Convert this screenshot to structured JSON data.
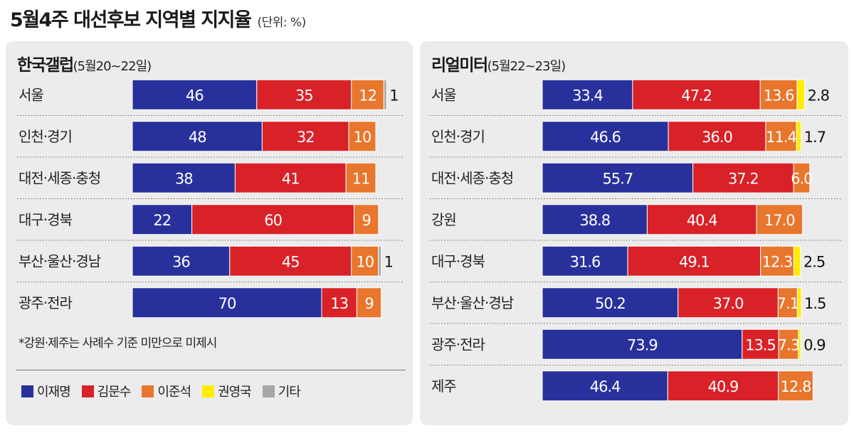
{
  "title": "5월4주 대선후보 지역별 지지율",
  "unit": "(단위: %)",
  "colors": {
    "이재명": "#28319b",
    "김문수": "#d92128",
    "이준석": "#e8762d",
    "권영국": "#ffee00",
    "기타": "#a7a7a7"
  },
  "footnote": "*강원·제주는 사례수 기준 미만으로 미제시",
  "legend": [
    {
      "name": "이재명",
      "color": "#28319b"
    },
    {
      "name": "김문수",
      "color": "#d92128"
    },
    {
      "name": "이준석",
      "color": "#e8762d"
    },
    {
      "name": "권영국",
      "color": "#ffee00"
    },
    {
      "name": "기타",
      "color": "#a7a7a7"
    }
  ],
  "chart_data": [
    {
      "type": "bar",
      "stacked": true,
      "orientation": "horizontal",
      "title": "한국갤럽",
      "subtitle": "(5월20~22일)",
      "categories": [
        "서울",
        "인천·경기",
        "대전·세종·충청",
        "대구·경북",
        "부산·울산·경남",
        "광주·전라"
      ],
      "series": [
        {
          "name": "이재명",
          "values": [
            46,
            48,
            38,
            22,
            36,
            70
          ]
        },
        {
          "name": "김문수",
          "values": [
            35,
            32,
            41,
            60,
            45,
            13
          ]
        },
        {
          "name": "이준석",
          "values": [
            12,
            10,
            11,
            9,
            10,
            9
          ]
        },
        {
          "name": "기타",
          "values": [
            1,
            null,
            null,
            null,
            1,
            null
          ]
        }
      ],
      "labels": [
        [
          "46",
          "35",
          "12",
          "1"
        ],
        [
          "48",
          "32",
          "10",
          ""
        ],
        [
          "38",
          "41",
          "11",
          ""
        ],
        [
          "22",
          "60",
          "9",
          ""
        ],
        [
          "36",
          "45",
          "10",
          "1"
        ],
        [
          "70",
          "13",
          "9",
          ""
        ]
      ]
    },
    {
      "type": "bar",
      "stacked": true,
      "orientation": "horizontal",
      "title": "리얼미터",
      "subtitle": "(5월22~23일)",
      "categories": [
        "서울",
        "인천·경기",
        "대전·세종·충청",
        "강원",
        "대구·경북",
        "부산·울산·경남",
        "광주·전라",
        "제주"
      ],
      "series": [
        {
          "name": "이재명",
          "values": [
            33.4,
            46.6,
            55.7,
            38.8,
            31.6,
            50.2,
            73.9,
            46.4
          ]
        },
        {
          "name": "김문수",
          "values": [
            47.2,
            36.0,
            37.2,
            40.4,
            49.1,
            37.0,
            13.5,
            40.9
          ]
        },
        {
          "name": "이준석",
          "values": [
            13.6,
            11.4,
            6.0,
            17.0,
            12.3,
            7.1,
            7.3,
            12.8
          ]
        },
        {
          "name": "권영국",
          "values": [
            2.8,
            1.7,
            null,
            null,
            2.5,
            1.5,
            0.9,
            null
          ]
        }
      ],
      "labels": [
        [
          "33.4",
          "47.2",
          "13.6",
          "2.8"
        ],
        [
          "46.6",
          "36.0",
          "11.4",
          "1.7"
        ],
        [
          "55.7",
          "37.2",
          "6.0",
          ""
        ],
        [
          "38.8",
          "40.4",
          "17.0",
          ""
        ],
        [
          "31.6",
          "49.1",
          "12.3",
          "2.5"
        ],
        [
          "50.2",
          "37.0",
          "7.1",
          "1.5"
        ],
        [
          "73.9",
          "13.5",
          "7.3",
          "0.9"
        ],
        [
          "46.4",
          "40.9",
          "12.8",
          ""
        ]
      ]
    }
  ]
}
